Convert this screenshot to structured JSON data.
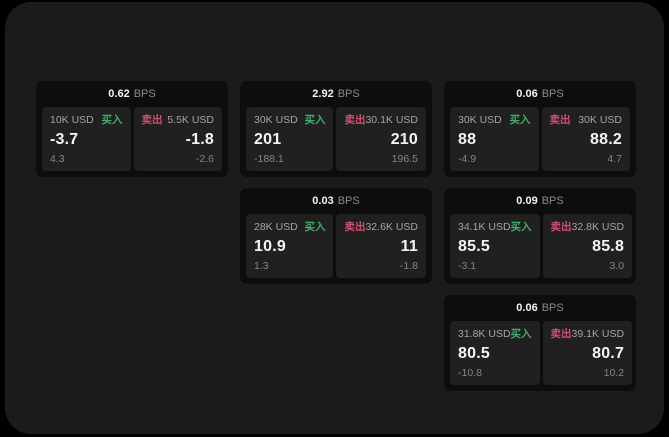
{
  "labels": {
    "buy": "买入",
    "sell": "卖出",
    "bps_unit": "BPS"
  },
  "colors": {
    "background": "#000000",
    "surface": "#1b1b1b",
    "card": "#0d0d0d",
    "panel": "#202020",
    "buy_green": "#3fae6a",
    "sell_red": "#d24f70"
  },
  "cards": [
    {
      "bps": "0.62",
      "buy": {
        "notional": "10K USD",
        "price": "-3.7",
        "delta": "4.3"
      },
      "sell": {
        "notional": "5.5K USD",
        "price": "-1.8",
        "delta": "-2.6"
      }
    },
    {
      "bps": "2.92",
      "buy": {
        "notional": "30K USD",
        "price": "201",
        "delta": "-188.1"
      },
      "sell": {
        "notional": "30.1K USD",
        "price": "210",
        "delta": "196.5"
      }
    },
    {
      "bps": "0.06",
      "buy": {
        "notional": "30K USD",
        "price": "88",
        "delta": "-4.9"
      },
      "sell": {
        "notional": "30K USD",
        "price": "88.2",
        "delta": "4.7"
      }
    },
    {
      "bps": "0.03",
      "buy": {
        "notional": "28K USD",
        "price": "10.9",
        "delta": "1.3"
      },
      "sell": {
        "notional": "32.6K USD",
        "price": "11",
        "delta": "-1.8"
      }
    },
    {
      "bps": "0.09",
      "buy": {
        "notional": "34.1K USD",
        "price": "85.5",
        "delta": "-3.1"
      },
      "sell": {
        "notional": "32.8K USD",
        "price": "85.8",
        "delta": "3.0"
      }
    },
    {
      "bps": "0.06",
      "buy": {
        "notional": "31.8K USD",
        "price": "80.5",
        "delta": "-10.8"
      },
      "sell": {
        "notional": "39.1K USD",
        "price": "80.7",
        "delta": "10.2"
      }
    }
  ]
}
